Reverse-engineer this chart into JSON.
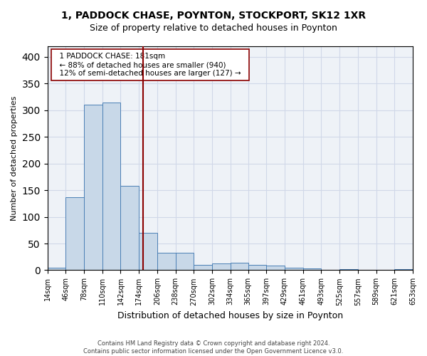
{
  "title_line1": "1, PADDOCK CHASE, POYNTON, STOCKPORT, SK12 1XR",
  "title_line2": "Size of property relative to detached houses in Poynton",
  "xlabel": "Distribution of detached houses by size in Poynton",
  "ylabel": "Number of detached properties",
  "footnote": "Contains HM Land Registry data © Crown copyright and database right 2024.\nContains public sector information licensed under the Open Government Licence v3.0.",
  "annotation_line1": "1 PADDOCK CHASE: 181sqm",
  "annotation_line2": "← 88% of detached houses are smaller (940)",
  "annotation_line3": "12% of semi-detached houses are larger (127) →",
  "property_size": 181,
  "bar_color": "#c8d8e8",
  "bar_edge_color": "#4a7fb5",
  "vline_color": "#8b0000",
  "grid_color": "#d0d8e8",
  "background_color": "#eef2f7",
  "bin_edges": [
    14,
    46,
    78,
    110,
    142,
    174,
    206,
    238,
    270,
    302,
    334,
    365,
    397,
    429,
    461,
    493,
    525,
    557,
    589,
    621,
    653
  ],
  "bar_heights": [
    4,
    137,
    311,
    315,
    158,
    70,
    32,
    32,
    10,
    13,
    14,
    10,
    8,
    4,
    3,
    0,
    2,
    0,
    0,
    2
  ],
  "ylim": [
    0,
    420
  ],
  "yticks": [
    0,
    50,
    100,
    150,
    200,
    250,
    300,
    350,
    400
  ]
}
